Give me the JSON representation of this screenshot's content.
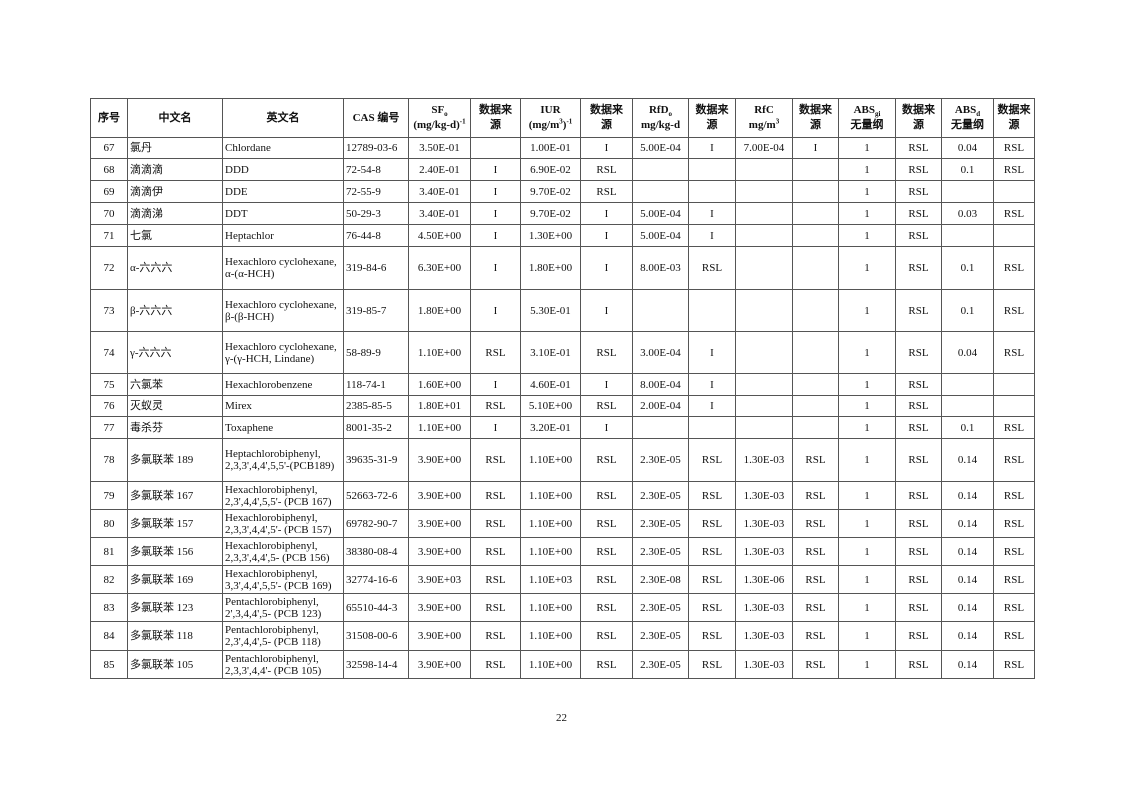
{
  "table": {
    "headers": [
      {
        "l1": [
          {
            "t": "序号"
          }
        ],
        "l2": []
      },
      {
        "l1": [
          {
            "t": "中文名"
          }
        ],
        "l2": []
      },
      {
        "l1": [
          {
            "t": "英文名"
          }
        ],
        "l2": []
      },
      {
        "l1": [
          {
            "t": "CAS 编号"
          }
        ],
        "l2": []
      },
      {
        "l1": [
          {
            "t": "SF"
          },
          {
            "t": "o",
            "s": "sub"
          }
        ],
        "l2": [
          {
            "t": "(mg/kg-d)"
          },
          {
            "t": "-1",
            "s": "sup"
          }
        ]
      },
      {
        "l1": [
          {
            "t": "数据来"
          }
        ],
        "l2": [
          {
            "t": "源"
          }
        ]
      },
      {
        "l1": [
          {
            "t": "IUR"
          }
        ],
        "l2": [
          {
            "t": "(mg/m"
          },
          {
            "t": "3",
            "s": "sup"
          },
          {
            "t": ")"
          },
          {
            "t": "-1",
            "s": "sup"
          }
        ]
      },
      {
        "l1": [
          {
            "t": "数据来"
          }
        ],
        "l2": [
          {
            "t": "源"
          }
        ]
      },
      {
        "l1": [
          {
            "t": "RfD"
          },
          {
            "t": "o",
            "s": "sub"
          }
        ],
        "l2": [
          {
            "t": "mg/kg-d"
          }
        ]
      },
      {
        "l1": [
          {
            "t": "数据来"
          }
        ],
        "l2": [
          {
            "t": "源"
          }
        ]
      },
      {
        "l1": [
          {
            "t": "RfC"
          }
        ],
        "l2": [
          {
            "t": "mg/m"
          },
          {
            "t": "3",
            "s": "sup"
          }
        ]
      },
      {
        "l1": [
          {
            "t": "数据来"
          }
        ],
        "l2": [
          {
            "t": "源"
          }
        ]
      },
      {
        "l1": [
          {
            "t": "ABS"
          },
          {
            "t": "gi",
            "s": "sub"
          }
        ],
        "l2": [
          {
            "t": "无量纲"
          }
        ]
      },
      {
        "l1": [
          {
            "t": "数据来"
          }
        ],
        "l2": [
          {
            "t": "源"
          }
        ]
      },
      {
        "l1": [
          {
            "t": "ABS"
          },
          {
            "t": "d",
            "s": "sub"
          }
        ],
        "l2": [
          {
            "t": "无量纲"
          }
        ]
      },
      {
        "l1": [
          {
            "t": "数据来"
          }
        ],
        "l2": [
          {
            "t": "源"
          }
        ]
      }
    ],
    "rows": [
      [
        "67",
        "氯丹",
        "Chlordane",
        "12789-03-6",
        "3.50E-01",
        "",
        "1.00E-01",
        "I",
        "5.00E-04",
        "I",
        "7.00E-04",
        "I",
        "1",
        "RSL",
        "0.04",
        "RSL"
      ],
      [
        "68",
        "滴滴滴",
        "DDD",
        "72-54-8",
        "2.40E-01",
        "I",
        "6.90E-02",
        "RSL",
        "",
        "",
        "",
        "",
        "1",
        "RSL",
        "0.1",
        "RSL"
      ],
      [
        "69",
        "滴滴伊",
        "DDE",
        "72-55-9",
        "3.40E-01",
        "I",
        "9.70E-02",
        "RSL",
        "",
        "",
        "",
        "",
        "1",
        "RSL",
        "",
        ""
      ],
      [
        "70",
        "滴滴涕",
        "DDT",
        "50-29-3",
        "3.40E-01",
        "I",
        "9.70E-02",
        "I",
        "5.00E-04",
        "I",
        "",
        "",
        "1",
        "RSL",
        "0.03",
        "RSL"
      ],
      [
        "71",
        "七氯",
        "Heptachlor",
        "76-44-8",
        "4.50E+00",
        "I",
        "1.30E+00",
        "I",
        "5.00E-04",
        "I",
        "",
        "",
        "1",
        "RSL",
        "",
        ""
      ],
      [
        "72",
        "α-六六六",
        "Hexachloro cyclohexane, α-(α-HCH)",
        "319-84-6",
        "6.30E+00",
        "I",
        "1.80E+00",
        "I",
        "8.00E-03",
        "RSL",
        "",
        "",
        "1",
        "RSL",
        "0.1",
        "RSL"
      ],
      [
        "73",
        "β-六六六",
        "Hexachloro cyclohexane, β-(β-HCH)",
        "319-85-7",
        "1.80E+00",
        "I",
        "5.30E-01",
        "I",
        "",
        "",
        "",
        "",
        "1",
        "RSL",
        "0.1",
        "RSL"
      ],
      [
        "74",
        "γ-六六六",
        "Hexachloro cyclohexane, γ-(γ-HCH, Lindane)",
        "58-89-9",
        "1.10E+00",
        "RSL",
        "3.10E-01",
        "RSL",
        "3.00E-04",
        "I",
        "",
        "",
        "1",
        "RSL",
        "0.04",
        "RSL"
      ],
      [
        "75",
        "六氯苯",
        "Hexachlorobenzene",
        "118-74-1",
        "1.60E+00",
        "I",
        "4.60E-01",
        "I",
        "8.00E-04",
        "I",
        "",
        "",
        "1",
        "RSL",
        "",
        ""
      ],
      [
        "76",
        "灭蚁灵",
        "Mirex",
        "2385-85-5",
        "1.80E+01",
        "RSL",
        "5.10E+00",
        "RSL",
        "2.00E-04",
        "I",
        "",
        "",
        "1",
        "RSL",
        "",
        ""
      ],
      [
        "77",
        "毒杀芬",
        "Toxaphene",
        "8001-35-2",
        "1.10E+00",
        "I",
        "3.20E-01",
        "I",
        "",
        "",
        "",
        "",
        "1",
        "RSL",
        "0.1",
        "RSL"
      ],
      [
        "78",
        "多氯联苯 189",
        "Heptachlorobiphenyl, 2,3,3',4,4',5,5'-(PCB189)",
        "39635-31-9",
        "3.90E+00",
        "RSL",
        "1.10E+00",
        "RSL",
        "2.30E-05",
        "RSL",
        "1.30E-03",
        "RSL",
        "1",
        "RSL",
        "0.14",
        "RSL"
      ],
      [
        "79",
        "多氯联苯 167",
        "Hexachlorobiphenyl, 2,3',4,4',5,5'- (PCB 167)",
        "52663-72-6",
        "3.90E+00",
        "RSL",
        "1.10E+00",
        "RSL",
        "2.30E-05",
        "RSL",
        "1.30E-03",
        "RSL",
        "1",
        "RSL",
        "0.14",
        "RSL"
      ],
      [
        "80",
        "多氯联苯 157",
        "Hexachlorobiphenyl, 2,3,3',4,4',5'- (PCB 157)",
        "69782-90-7",
        "3.90E+00",
        "RSL",
        "1.10E+00",
        "RSL",
        "2.30E-05",
        "RSL",
        "1.30E-03",
        "RSL",
        "1",
        "RSL",
        "0.14",
        "RSL"
      ],
      [
        "81",
        "多氯联苯 156",
        "Hexachlorobiphenyl, 2,3,3',4,4',5- (PCB 156)",
        "38380-08-4",
        "3.90E+00",
        "RSL",
        "1.10E+00",
        "RSL",
        "2.30E-05",
        "RSL",
        "1.30E-03",
        "RSL",
        "1",
        "RSL",
        "0.14",
        "RSL"
      ],
      [
        "82",
        "多氯联苯 169",
        "Hexachlorobiphenyl, 3,3',4,4',5,5'- (PCB 169)",
        "32774-16-6",
        "3.90E+03",
        "RSL",
        "1.10E+03",
        "RSL",
        "2.30E-08",
        "RSL",
        "1.30E-06",
        "RSL",
        "1",
        "RSL",
        "0.14",
        "RSL"
      ],
      [
        "83",
        "多氯联苯 123",
        "Pentachlorobiphenyl, 2',3,4,4',5- (PCB 123)",
        "65510-44-3",
        "3.90E+00",
        "RSL",
        "1.10E+00",
        "RSL",
        "2.30E-05",
        "RSL",
        "1.30E-03",
        "RSL",
        "1",
        "RSL",
        "0.14",
        "RSL"
      ],
      [
        "84",
        "多氯联苯 118",
        "Pentachlorobiphenyl, 2,3',4,4',5- (PCB 118)",
        "31508-00-6",
        "3.90E+00",
        "RSL",
        "1.10E+00",
        "RSL",
        "2.30E-05",
        "RSL",
        "1.30E-03",
        "RSL",
        "1",
        "RSL",
        "0.14",
        "RSL"
      ],
      [
        "85",
        "多氯联苯 105",
        "Pentachlorobiphenyl, 2,3,3',4,4'- (PCB 105)",
        "32598-14-4",
        "3.90E+00",
        "RSL",
        "1.10E+00",
        "RSL",
        "2.30E-05",
        "RSL",
        "1.30E-03",
        "RSL",
        "1",
        "RSL",
        "0.14",
        "RSL"
      ]
    ]
  },
  "page_number": "22"
}
